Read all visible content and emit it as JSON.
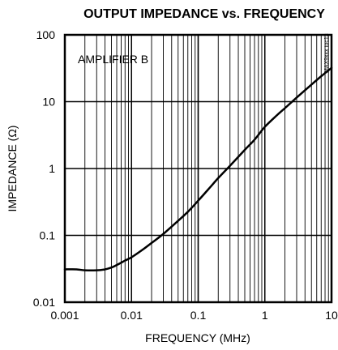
{
  "chart_data": {
    "type": "line",
    "title": "OUTPUT IMPEDANCE vs. FREQUENCY",
    "xlabel": "FREQUENCY (MHz)",
    "ylabel": "IMPEDANCE (Ω)",
    "xscale": "log",
    "yscale": "log",
    "xlim": [
      0.001,
      10
    ],
    "ylim": [
      0.01,
      100
    ],
    "xticks": [
      "0.001",
      "0.01",
      "0.1",
      "1",
      "10"
    ],
    "yticks": [
      "0.01",
      "0.1",
      "1",
      "10",
      "100"
    ],
    "grid": true,
    "annotation": "AMPLIFIER B",
    "watermark": "MAX9xxx toc13",
    "line_color": "#000000",
    "series": [
      {
        "x": [
          0.001,
          0.0015,
          0.002,
          0.003,
          0.004,
          0.005,
          0.006,
          0.007,
          0.008,
          0.01,
          0.015,
          0.02,
          0.03,
          0.05,
          0.07,
          0.1,
          0.15,
          0.2,
          0.3,
          0.5,
          0.7,
          1,
          1.5,
          2,
          3,
          5,
          7,
          10
        ],
        "y": [
          0.031,
          0.031,
          0.03,
          0.03,
          0.031,
          0.033,
          0.036,
          0.039,
          0.042,
          0.047,
          0.062,
          0.077,
          0.105,
          0.165,
          0.225,
          0.33,
          0.52,
          0.72,
          1.1,
          1.9,
          2.7,
          4.2,
          6.2,
          8.0,
          11.5,
          18.0,
          24.0,
          32.0
        ]
      }
    ]
  }
}
